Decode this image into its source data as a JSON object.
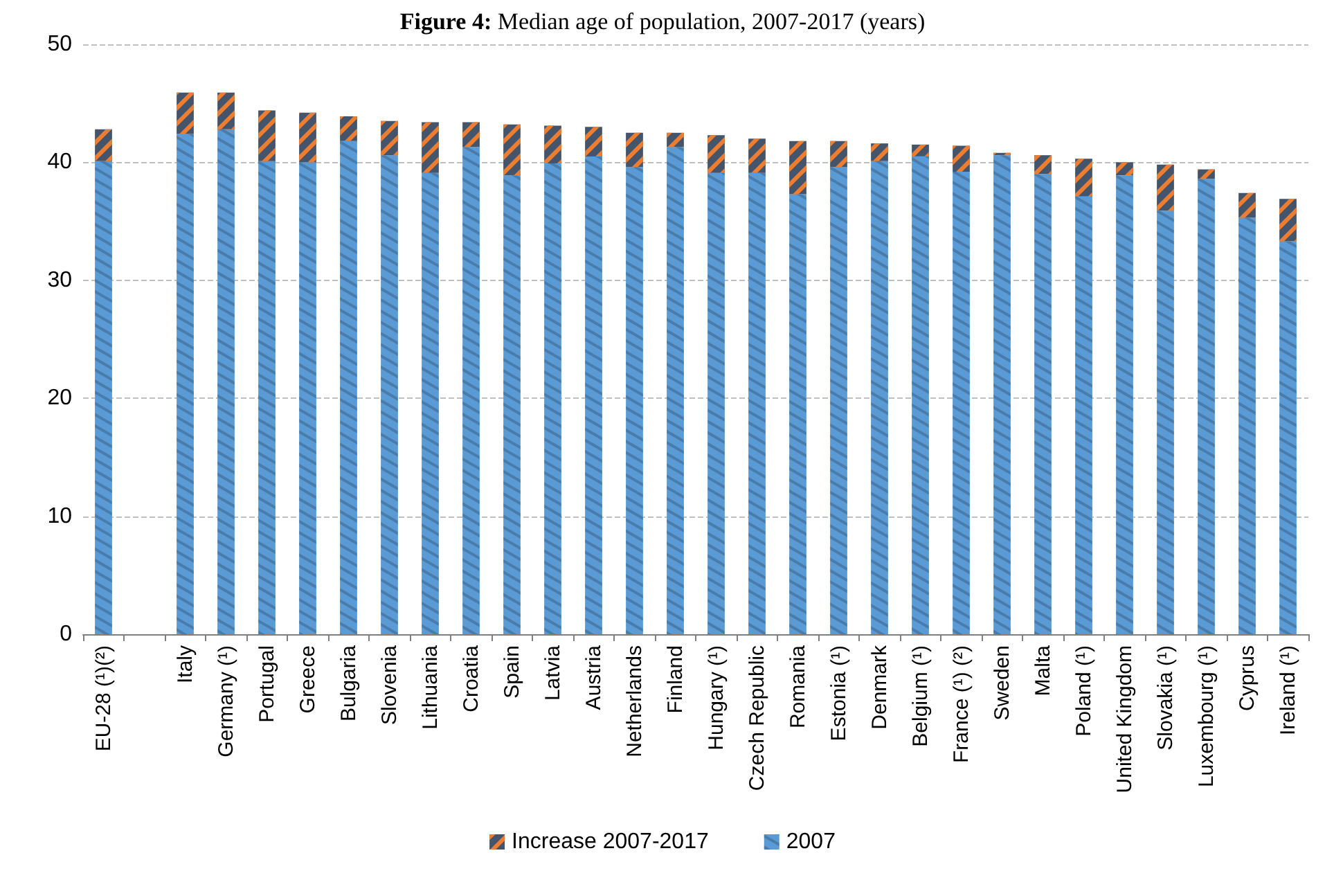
{
  "chart_data": {
    "type": "bar",
    "title": "Figure 4: Median age of population, 2007-2017 (years)",
    "stacked": true,
    "categories": [
      "EU-28 (¹)(²)",
      null,
      "Italy",
      "Germany (¹)",
      "Portugal",
      "Greece",
      "Bulgaria",
      "Slovenia",
      "Lithuania",
      "Croatia",
      "Spain",
      "Latvia",
      "Austria",
      "Netherlands",
      "Finland",
      "Hungary (¹)",
      "Czech Republic",
      "Romania",
      "Estonia (¹)",
      "Denmark",
      "Belgium (¹)",
      "France (¹) (²)",
      "Sweden",
      "Malta",
      "Poland (¹)",
      "United Kingdom",
      "Slovakia (¹)",
      "Luxembourg (¹)",
      "Cyprus",
      "Ireland (¹)"
    ],
    "series": [
      {
        "name": "2007",
        "color": "#5b9bd5",
        "values": [
          40.1,
          null,
          42.4,
          42.8,
          40.1,
          40.0,
          41.8,
          40.6,
          39.1,
          41.3,
          38.9,
          39.9,
          40.5,
          39.6,
          41.3,
          39.1,
          39.1,
          37.3,
          39.6,
          40.1,
          40.5,
          39.2,
          40.6,
          39.0,
          37.1,
          38.9,
          35.9,
          38.6,
          35.3,
          33.3
        ]
      },
      {
        "name": "Increase 2007-2017",
        "color": "#44546a",
        "values": [
          2.7,
          null,
          3.5,
          3.1,
          4.3,
          4.2,
          2.1,
          2.9,
          4.3,
          2.1,
          4.3,
          3.2,
          2.5,
          2.9,
          1.2,
          3.2,
          2.9,
          4.5,
          2.2,
          1.5,
          1.0,
          2.2,
          0.2,
          1.6,
          3.2,
          1.1,
          3.9,
          0.8,
          2.1,
          3.6
        ]
      }
    ],
    "ylim": [
      0,
      50
    ],
    "yticks": [
      0,
      10,
      20,
      30,
      40,
      50
    ],
    "grid": "y",
    "legend": "bottom"
  }
}
